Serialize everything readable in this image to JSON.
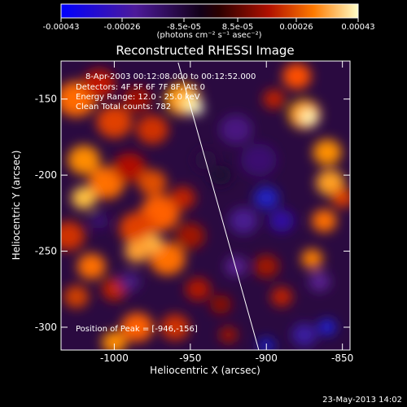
{
  "chart_data": {
    "type": "heatmap",
    "title": "Reconstructed RHESSI Image",
    "colorbar": {
      "ticks": [
        "-0.00043",
        "-0.00026",
        "-8.5e-05",
        "8.5e-05",
        "0.00026",
        "0.00043"
      ],
      "range": [
        -0.00043,
        0.00043
      ],
      "unit_label": "(photons cm⁻² s⁻¹ asec⁻²)",
      "colormap": [
        "#0000ff",
        "#5a1a8c",
        "#000000",
        "#8b0000",
        "#ff4500",
        "#ffb000",
        "#ffffe0"
      ]
    },
    "xaxis": {
      "label": "Heliocentric X (arcsec)",
      "ticks": [
        -1000,
        -950,
        -900,
        -850
      ],
      "range": [
        -1035,
        -845
      ]
    },
    "yaxis": {
      "label": "Heliocentric Y (arcsec)",
      "ticks": [
        -150,
        -200,
        -250,
        -300
      ],
      "range": [
        -315,
        -125
      ]
    },
    "annotations": {
      "time": "8-Apr-2003 00:12:08.000 to 00:12:52.000",
      "detectors": "Detectors: 4F 5F 6F 7F 8F, Att 0",
      "energy": "Energy Range: 12.0 - 25.0 keV",
      "clean": "Clean    Total counts: 782",
      "peak": "Position of Peak = [-946,-156]"
    },
    "peak": {
      "x": -946,
      "y": -156
    },
    "limb_line": [
      [
        -958,
        -126
      ],
      [
        -905,
        -315
      ]
    ]
  },
  "footer": {
    "timestamp": "23-May-2013 14:02"
  }
}
